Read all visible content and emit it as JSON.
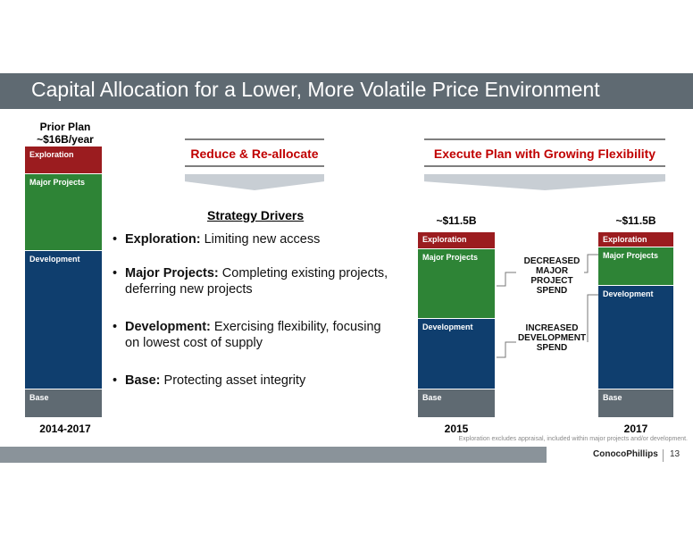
{
  "title": "Capital Allocation for a Lower, More Volatile Price Environment",
  "colors": {
    "exploration": "#9b1c1f",
    "major_projects": "#2e8436",
    "development": "#0f3e6e",
    "base": "#5f6a72",
    "header_red": "#c00000",
    "header_band": "#5f6a72"
  },
  "prior_plan": {
    "label_line1": "Prior Plan",
    "label_line2": "~$16B/year",
    "year": "2014-2017"
  },
  "segments": {
    "exploration": "Exploration",
    "major_projects": "Major Projects",
    "development": "Development",
    "base": "Base"
  },
  "headers": {
    "left": "Reduce & Re-allocate",
    "right": "Execute Plan with Growing Flexibility"
  },
  "strategy": {
    "title": "Strategy Drivers",
    "bullets": [
      {
        "bold": "Exploration:",
        "text": " Limiting new access"
      },
      {
        "bold": "Major Projects:",
        "text": " Completing existing projects, deferring new projects"
      },
      {
        "bold": "Development:",
        "text": " Exercising flexibility, focusing on lowest cost of supply"
      },
      {
        "bold": "Base:",
        "text": " Protecting asset integrity"
      }
    ]
  },
  "bars": {
    "b2015": {
      "total": "~$11.5B",
      "year": "2015"
    },
    "b2017": {
      "total": "~$11.5B",
      "year": "2017"
    }
  },
  "annotations": {
    "decreased": [
      "DECREASED",
      "MAJOR",
      "PROJECT",
      "SPEND"
    ],
    "increased": [
      "INCREASED",
      "DEVELOPMENT",
      "SPEND"
    ]
  },
  "footnote": "Exploration excludes appraisal, included within major projects and/or development.",
  "logo": "ConocoPhillips",
  "page_number": "13"
}
